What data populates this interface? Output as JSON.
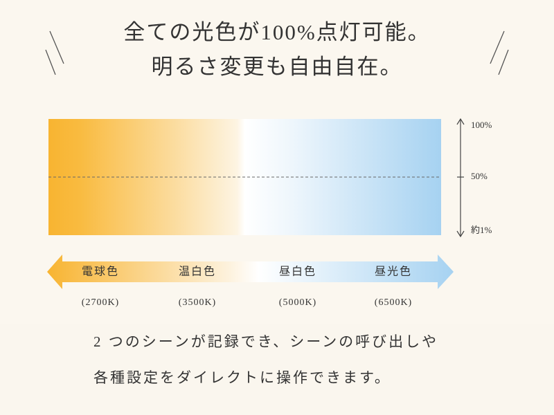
{
  "header": {
    "lines": [
      "全ての光色が100%点灯可能。",
      "明るさ変更も自由自在。"
    ]
  },
  "scale": {
    "labels": [
      "100%",
      "50%",
      "約1%"
    ]
  },
  "color_modes": [
    {
      "name": "電球色",
      "temperature": "(2700K)"
    },
    {
      "name": "温白色",
      "temperature": "(3500K)"
    },
    {
      "name": "昼白色",
      "temperature": "(5000K)"
    },
    {
      "name": "昼光色",
      "temperature": "(6500K)"
    }
  ],
  "footer": {
    "lines": [
      "2 つのシーンが記録でき、シーンの呼び出しや",
      "各種設定をダイレクトに操作できます。"
    ]
  }
}
